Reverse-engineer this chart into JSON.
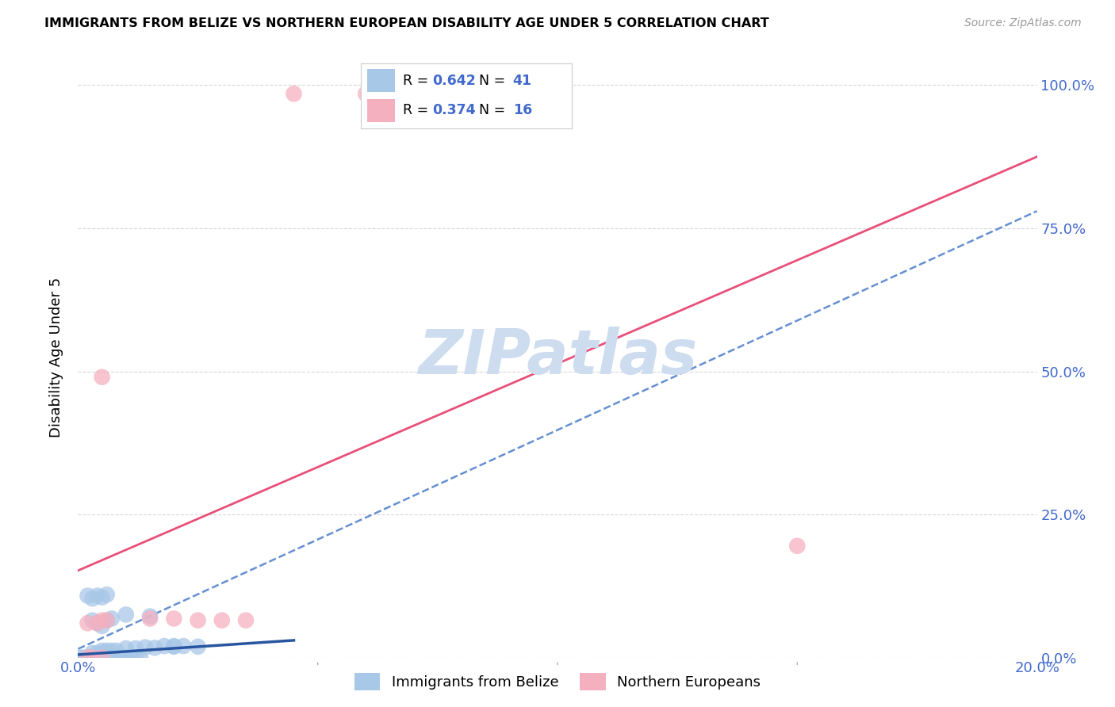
{
  "title": "IMMIGRANTS FROM BELIZE VS NORTHERN EUROPEAN DISABILITY AGE UNDER 5 CORRELATION CHART",
  "source": "Source: ZipAtlas.com",
  "ylabel": "Disability Age Under 5",
  "xlim": [
    0.0,
    0.2
  ],
  "ylim": [
    0.0,
    1.05
  ],
  "ytick_positions": [
    0.0,
    0.25,
    0.5,
    0.75,
    1.0
  ],
  "ytick_labels": [
    "0.0%",
    "25.0%",
    "50.0%",
    "75.0%",
    "100.0%"
  ],
  "xtick_positions": [
    0.0,
    0.2
  ],
  "xtick_labels": [
    "0.0%",
    "20.0%"
  ],
  "blue_R": "0.642",
  "blue_N": "41",
  "pink_R": "0.374",
  "pink_N": "16",
  "blue_color": "#a8c8e8",
  "pink_color": "#f5b0c0",
  "blue_line_color": "#4a7cc9",
  "blue_line_color_solid": "#2855a0",
  "pink_line_color": "#e8507a",
  "tick_color": "#4169cc",
  "grid_color": "#d8d8d8",
  "watermark_color": "#cddcef",
  "blue_scatter": [
    [
      0.0,
      0.0
    ],
    [
      0.001,
      0.0
    ],
    [
      0.002,
      0.0
    ],
    [
      0.003,
      0.0
    ],
    [
      0.004,
      0.0
    ],
    [
      0.005,
      0.0
    ],
    [
      0.006,
      0.0
    ],
    [
      0.007,
      0.0
    ],
    [
      0.008,
      0.0
    ],
    [
      0.009,
      0.0
    ],
    [
      0.01,
      0.0
    ],
    [
      0.011,
      0.0
    ],
    [
      0.012,
      0.0
    ],
    [
      0.013,
      0.0
    ],
    [
      0.003,
      0.008
    ],
    [
      0.004,
      0.008
    ],
    [
      0.005,
      0.012
    ],
    [
      0.006,
      0.012
    ],
    [
      0.007,
      0.012
    ],
    [
      0.008,
      0.012
    ],
    [
      0.01,
      0.016
    ],
    [
      0.012,
      0.016
    ],
    [
      0.014,
      0.018
    ],
    [
      0.016,
      0.017
    ],
    [
      0.018,
      0.02
    ],
    [
      0.02,
      0.019
    ],
    [
      0.022,
      0.02
    ],
    [
      0.025,
      0.019
    ],
    [
      0.003,
      0.065
    ],
    [
      0.004,
      0.06
    ],
    [
      0.005,
      0.055
    ],
    [
      0.006,
      0.065
    ],
    [
      0.002,
      0.108
    ],
    [
      0.003,
      0.103
    ],
    [
      0.004,
      0.108
    ],
    [
      0.005,
      0.105
    ],
    [
      0.006,
      0.11
    ],
    [
      0.007,
      0.068
    ],
    [
      0.01,
      0.075
    ],
    [
      0.015,
      0.072
    ],
    [
      0.02,
      0.02
    ]
  ],
  "pink_scatter": [
    [
      0.002,
      0.0
    ],
    [
      0.003,
      0.0
    ],
    [
      0.005,
      0.0
    ],
    [
      0.002,
      0.06
    ],
    [
      0.004,
      0.06
    ],
    [
      0.005,
      0.065
    ],
    [
      0.006,
      0.065
    ],
    [
      0.015,
      0.068
    ],
    [
      0.02,
      0.068
    ],
    [
      0.025,
      0.065
    ],
    [
      0.03,
      0.065
    ],
    [
      0.035,
      0.065
    ],
    [
      0.005,
      0.49
    ],
    [
      0.15,
      0.195
    ],
    [
      0.045,
      0.985
    ],
    [
      0.06,
      0.985
    ]
  ],
  "blue_dash_line": [
    [
      0.0,
      0.015
    ],
    [
      0.2,
      0.78
    ]
  ],
  "blue_solid_line": [
    [
      0.0,
      0.005
    ],
    [
      0.045,
      0.03
    ]
  ],
  "pink_line": [
    [
      0.0,
      0.152
    ],
    [
      0.2,
      0.875
    ]
  ],
  "legend_label_blue": "Immigrants from Belize",
  "legend_label_pink": "Northern Europeans"
}
